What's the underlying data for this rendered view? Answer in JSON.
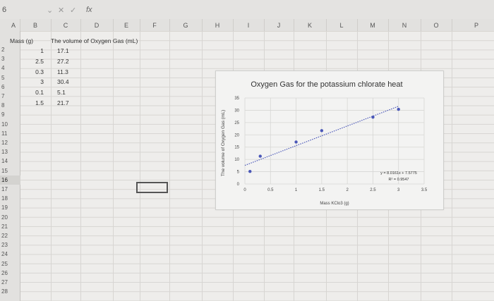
{
  "formula_bar": {
    "name_box": "6",
    "cancel": "✕",
    "enter": "✓",
    "fx": "fx"
  },
  "columns": [
    "A",
    "B",
    "C",
    "D",
    "E",
    "F",
    "G",
    "H",
    "I",
    "J",
    "K",
    "L",
    "M",
    "N",
    "O",
    "P"
  ],
  "rows": [
    "2",
    "3",
    "4",
    "5",
    "6",
    "7",
    "8",
    "9",
    "10",
    "11",
    "12",
    "13",
    "14",
    "15",
    "16",
    "17",
    "18",
    "19",
    "20",
    "21",
    "22",
    "23",
    "24",
    "25",
    "26",
    "27",
    "28"
  ],
  "table": {
    "header_mass": "Mass (g)",
    "header_volume": "The volume of Oxygen Gas (mL)",
    "mass": [
      "1",
      "2.5",
      "0.3",
      "3",
      "0.1",
      "1.5"
    ],
    "volume": [
      "17.1",
      "27.2",
      "11.3",
      "30.4",
      "5.1",
      "21.7"
    ]
  },
  "chart_data": {
    "type": "scatter",
    "title": "Oxygen Gas for the potassium chlorate heat",
    "xlabel": "Mass KClo3 (g)",
    "ylabel": "The volume of Oxygen Gas (mL)",
    "xlim": [
      0,
      3.5
    ],
    "ylim": [
      0,
      35
    ],
    "xticks": [
      "0",
      "0.5",
      "1",
      "1.5",
      "2",
      "2.5",
      "3",
      "3.5"
    ],
    "yticks": [
      "0",
      "5",
      "10",
      "15",
      "20",
      "25",
      "30",
      "35"
    ],
    "x": [
      0.1,
      0.3,
      1,
      1.5,
      2.5,
      3
    ],
    "y": [
      5.1,
      11.3,
      17.1,
      21.7,
      27.2,
      30.4
    ],
    "trendline": {
      "slope": 8.0161,
      "intercept": 7.5775
    },
    "equation": "y = 8.0161x + 7.5775",
    "r2": "R² = 0.9547",
    "grid": true,
    "point_color": "#4a57b8",
    "trend_color": "#4a57b8"
  }
}
